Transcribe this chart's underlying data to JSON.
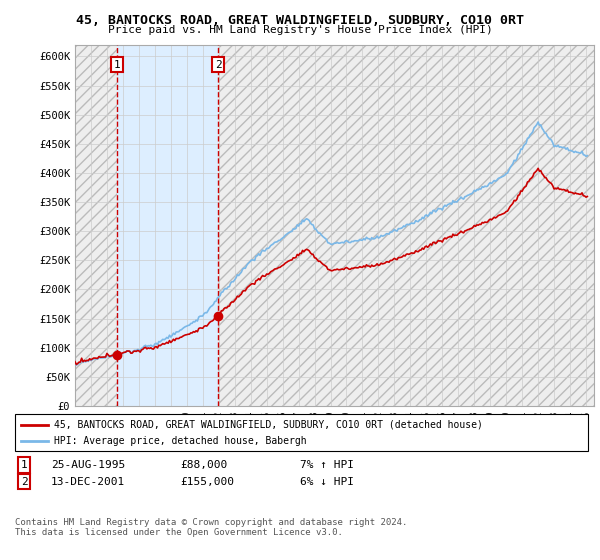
{
  "title": "45, BANTOCKS ROAD, GREAT WALDINGFIELD, SUDBURY, CO10 0RT",
  "subtitle": "Price paid vs. HM Land Registry's House Price Index (HPI)",
  "ylim": [
    0,
    620000
  ],
  "yticks": [
    0,
    50000,
    100000,
    150000,
    200000,
    250000,
    300000,
    350000,
    400000,
    450000,
    500000,
    550000,
    600000
  ],
  "ytick_labels": [
    "£0",
    "£50K",
    "£100K",
    "£150K",
    "£200K",
    "£250K",
    "£300K",
    "£350K",
    "£400K",
    "£450K",
    "£500K",
    "£550K",
    "£600K"
  ],
  "hpi_color": "#7ab8e8",
  "price_color": "#cc0000",
  "marker_color": "#cc0000",
  "dashed_line_color": "#cc0000",
  "annotation_box_color": "#cc0000",
  "shade_color": "#ddeeff",
  "sale1_t": 1995.6389,
  "sale1_price": 88000,
  "sale2_t": 2001.9583,
  "sale2_price": 155000,
  "sale1_date": "25-AUG-1995",
  "sale1_amount": "£88,000",
  "sale1_hpi": "7% ↑ HPI",
  "sale2_date": "13-DEC-2001",
  "sale2_amount": "£155,000",
  "sale2_hpi": "6% ↓ HPI",
  "legend_property": "45, BANTOCKS ROAD, GREAT WALDINGFIELD, SUDBURY, CO10 0RT (detached house)",
  "legend_hpi": "HPI: Average price, detached house, Babergh",
  "footer": "Contains HM Land Registry data © Crown copyright and database right 2024.\nThis data is licensed under the Open Government Licence v3.0.",
  "grid_color": "#cccccc",
  "xlim_left": 1993,
  "xlim_right": 2025.5
}
